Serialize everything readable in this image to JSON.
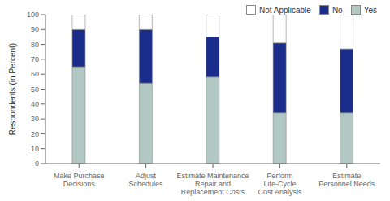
{
  "chart_data": {
    "type": "bar",
    "stacked": true,
    "categories": [
      "Make Purchase\nDecisions",
      "Adjust\nSchedules",
      "Estimate Maintenance\nRepair and\nReplacement Costs",
      "Perform\nLife-Cycle\nCost Analysis",
      "Estimate\nPersonnel Needs"
    ],
    "series": [
      {
        "name": "Yes",
        "color": "#b2c9c3",
        "values": [
          65,
          54,
          58,
          34,
          34
        ]
      },
      {
        "name": "No",
        "color": "#1a2d8a",
        "values": [
          25,
          36,
          27,
          47,
          43
        ]
      },
      {
        "name": "Not Applicable",
        "color": "#ffffff",
        "values": [
          10,
          10,
          15,
          19,
          23
        ]
      }
    ],
    "ylabel": "Respondents (in Percent)",
    "ylim": [
      0,
      100
    ],
    "yticks": [
      0,
      10,
      20,
      30,
      40,
      50,
      60,
      70,
      80,
      90,
      100
    ],
    "grid": false,
    "legend": "upper right"
  }
}
